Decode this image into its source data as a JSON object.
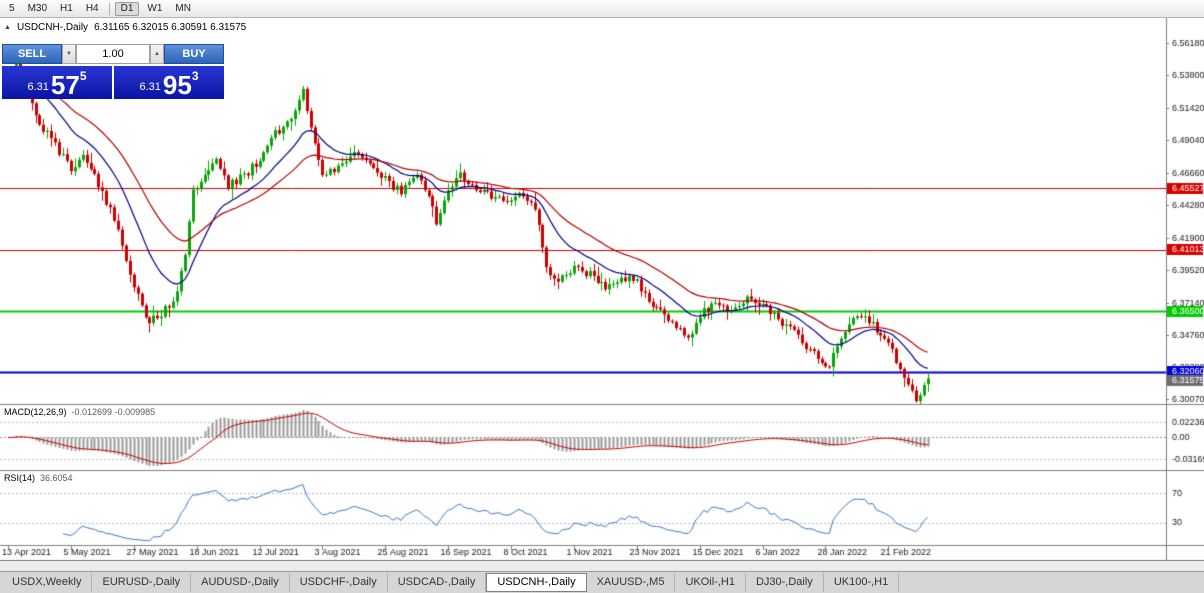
{
  "toolbar": {
    "timeframes": [
      "5",
      "M30",
      "H1",
      "H4",
      "D1",
      "W1",
      "MN"
    ],
    "active": "D1"
  },
  "chart": {
    "symbol_title": "USDCNH-,Daily",
    "ohlc_text": "6.31165 6.32015 6.30591 6.31575",
    "collapse_icon": "▲"
  },
  "trade_panel": {
    "sell_label": "SELL",
    "buy_label": "BUY",
    "volume": "1.00",
    "volume_down_icon": "▼",
    "volume_up_icon": "▲",
    "sell_price": {
      "prefix": "6.31",
      "big": "57",
      "sup": "5"
    },
    "buy_price": {
      "prefix": "6.31",
      "big": "95",
      "sup": "3"
    }
  },
  "price_axis": [
    "6.56180",
    "6.53800",
    "6.51420",
    "6.49040",
    "6.46660",
    "6.44280",
    "6.41900",
    "6.39520",
    "6.37140",
    "6.34760",
    "6.32380",
    "6.30070"
  ],
  "indicators": {
    "macd": {
      "name": "MACD(12,26,9)",
      "values": "-0.012699 -0.009985",
      "axis_labels": [
        "0.02236",
        "0.00",
        "-0.03169"
      ]
    },
    "rsi": {
      "name": "RSI(14)",
      "values": "36.6054",
      "axis_labels": [
        "70",
        "30"
      ]
    }
  },
  "time_axis": [
    "13 Apr 2021",
    "5 May 2021",
    "27 May 2021",
    "18 Jun 2021",
    "12 Jul 2021",
    "3 Aug 2021",
    "25 Aug 2021",
    "16 Sep 2021",
    "8 Oct 2021",
    "1 Nov 2021",
    "23 Nov 2021",
    "15 Dec 2021",
    "6 Jan 2022",
    "28 Jan 2022",
    "21 Feb 2022"
  ],
  "tabs": [
    {
      "label": "USDX,Weekly",
      "active": false
    },
    {
      "label": "EURUSD-,Daily",
      "active": false
    },
    {
      "label": "AUDUSD-,Daily",
      "active": false
    },
    {
      "label": "USDCHF-,Daily",
      "active": false
    },
    {
      "label": "USDCAD-,Daily",
      "active": false
    },
    {
      "label": "USDCNH-,Daily",
      "active": true
    },
    {
      "label": "XAUUSD-,M5",
      "active": false
    },
    {
      "label": "UKOil-,H1",
      "active": false
    },
    {
      "label": "DJ30-,Daily",
      "active": false
    },
    {
      "label": "UK100-,H1",
      "active": false
    }
  ],
  "chart_data": {
    "type": "candlestick",
    "symbol": "USDCNH-",
    "timeframe": "Daily",
    "y_range": [
      6.297,
      6.58
    ],
    "candle_count": 235,
    "x_tick_step": 16,
    "last_ohlc": {
      "open": 6.31165,
      "high": 6.32015,
      "low": 6.30591,
      "close": 6.31575
    },
    "close_anchors": [
      [
        0,
        6.535
      ],
      [
        2,
        6.549
      ],
      [
        5,
        6.522
      ],
      [
        8,
        6.502
      ],
      [
        12,
        6.487
      ],
      [
        16,
        6.468
      ],
      [
        19,
        6.477
      ],
      [
        23,
        6.458
      ],
      [
        27,
        6.434
      ],
      [
        30,
        6.403
      ],
      [
        33,
        6.376
      ],
      [
        36,
        6.357
      ],
      [
        40,
        6.366
      ],
      [
        43,
        6.379
      ],
      [
        45,
        6.408
      ],
      [
        47,
        6.452
      ],
      [
        50,
        6.467
      ],
      [
        53,
        6.477
      ],
      [
        56,
        6.458
      ],
      [
        60,
        6.464
      ],
      [
        64,
        6.477
      ],
      [
        68,
        6.495
      ],
      [
        72,
        6.504
      ],
      [
        75,
        6.527
      ],
      [
        77,
        6.498
      ],
      [
        80,
        6.464
      ],
      [
        84,
        6.471
      ],
      [
        88,
        6.481
      ],
      [
        92,
        6.474
      ],
      [
        96,
        6.462
      ],
      [
        100,
        6.452
      ],
      [
        104,
        6.464
      ],
      [
        107,
        6.447
      ],
      [
        109,
        6.431
      ],
      [
        112,
        6.451
      ],
      [
        115,
        6.467
      ],
      [
        118,
        6.457
      ],
      [
        122,
        6.451
      ],
      [
        126,
        6.447
      ],
      [
        130,
        6.451
      ],
      [
        134,
        6.441
      ],
      [
        137,
        6.397
      ],
      [
        140,
        6.386
      ],
      [
        144,
        6.399
      ],
      [
        148,
        6.392
      ],
      [
        152,
        6.383
      ],
      [
        156,
        6.39
      ],
      [
        160,
        6.386
      ],
      [
        164,
        6.371
      ],
      [
        168,
        6.359
      ],
      [
        173,
        6.345
      ],
      [
        176,
        6.363
      ],
      [
        180,
        6.37
      ],
      [
        184,
        6.366
      ],
      [
        188,
        6.376
      ],
      [
        192,
        6.371
      ],
      [
        196,
        6.358
      ],
      [
        200,
        6.349
      ],
      [
        204,
        6.337
      ],
      [
        209,
        6.325
      ],
      [
        212,
        6.345
      ],
      [
        215,
        6.362
      ],
      [
        218,
        6.361
      ],
      [
        221,
        6.352
      ],
      [
        224,
        6.341
      ],
      [
        227,
        6.324
      ],
      [
        229,
        6.313
      ],
      [
        231,
        6.302
      ],
      [
        233,
        6.308
      ],
      [
        234,
        6.31575
      ]
    ],
    "moving_averages": [
      {
        "name": "ma-fast",
        "period": 16,
        "color": "#00008b"
      },
      {
        "name": "ma-slow",
        "period": 34,
        "color": "#b40000"
      }
    ],
    "levels": [
      {
        "value": 6.45527,
        "label": "6.45527",
        "color": "#d60000",
        "line": true,
        "width": 1,
        "current": false
      },
      {
        "value": 6.41013,
        "label": "6.41013",
        "color": "#d60000",
        "line": true,
        "width": 1,
        "current": false
      },
      {
        "value": 6.365,
        "label": "6.36500",
        "color": "#00cc00",
        "line": true,
        "width": 2,
        "current": false
      },
      {
        "value": 6.3206,
        "label": "6.32060",
        "color": "#0000d6",
        "line": true,
        "width": 2,
        "current": false
      },
      {
        "value": 6.31575,
        "label": "6.31575",
        "color": "#6e6e6e",
        "line": false,
        "width": 1,
        "current": true
      }
    ],
    "colors": {
      "candle_up": "#0ca30c",
      "candle_down": "#cc0000",
      "macd_bar": "#9a9a9a",
      "macd_signal": "#cc0000",
      "rsi_line": "#3c78c8",
      "axis_text": "#1a1a1a",
      "grid": "#808080"
    }
  }
}
